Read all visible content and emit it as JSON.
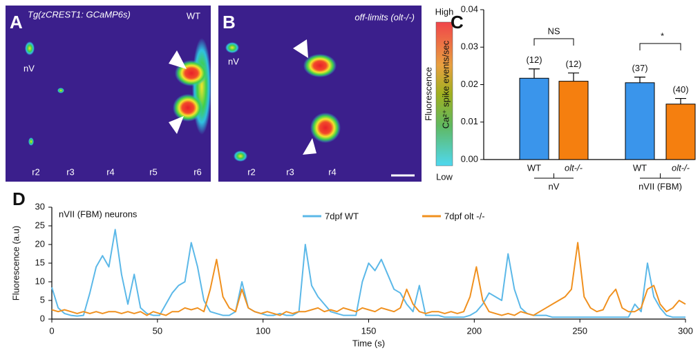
{
  "panels": {
    "A": {
      "letter": "A",
      "title": "Tg(zCREST1: GCaMP6s)",
      "genotype": "WT",
      "labels": [
        "nV",
        "r2",
        "r3",
        "r4",
        "r5",
        "r6"
      ]
    },
    "B": {
      "letter": "B",
      "title": "off-limits (olt-/-)",
      "labels": [
        "nV",
        "r2",
        "r3",
        "r4"
      ]
    }
  },
  "colorbar": {
    "high": "High",
    "low": "Low",
    "label": "Fluorescence"
  },
  "chart_data": [
    {
      "type": "bar",
      "panel": "C",
      "ylabel": "Ca²⁺ spike events/sec",
      "categories": [
        "WT",
        "olt-/-",
        "WT",
        "olt-/-"
      ],
      "groups": [
        "nV",
        "nVII (FBM)"
      ],
      "values": [
        0.0217,
        0.0209,
        0.0205,
        0.0148
      ],
      "errors": [
        0.0025,
        0.0022,
        0.0015,
        0.0015
      ],
      "n_labels": [
        "(12)",
        "(12)",
        "(37)",
        "(40)"
      ],
      "colors": [
        "#3a95eb",
        "#f57f0f",
        "#3a95eb",
        "#f57f0f"
      ],
      "significance": [
        "NS",
        "*"
      ],
      "ylim": [
        0,
        0.04
      ],
      "yticks": [
        {
          "value": 0,
          "label": "0.00"
        },
        {
          "value": 0.01,
          "label": "0.01"
        },
        {
          "value": 0.02,
          "label": "0.02"
        },
        {
          "value": 0.03,
          "label": "0.03"
        },
        {
          "value": 0.04,
          "label": "0.04"
        }
      ]
    },
    {
      "type": "line",
      "panel": "D",
      "annotation": "nVII (FBM) neurons",
      "xlabel": "Time (s)",
      "ylabel": "Fluorescence (a.u)",
      "x": [
        0,
        3,
        6,
        9,
        12,
        15,
        18,
        21,
        24,
        27,
        30,
        33,
        36,
        39,
        42,
        45,
        48,
        51,
        54,
        57,
        60,
        63,
        66,
        69,
        72,
        75,
        78,
        81,
        84,
        87,
        90,
        93,
        96,
        99,
        102,
        105,
        108,
        111,
        114,
        117,
        120,
        123,
        126,
        129,
        132,
        135,
        138,
        141,
        144,
        147,
        150,
        153,
        156,
        159,
        162,
        165,
        168,
        171,
        174,
        177,
        180,
        183,
        186,
        189,
        192,
        195,
        198,
        201,
        204,
        207,
        210,
        213,
        216,
        219,
        222,
        225,
        228,
        231,
        234,
        237,
        240,
        243,
        246,
        249,
        252,
        255,
        258,
        261,
        264,
        267,
        270,
        273,
        276,
        279,
        282,
        285,
        288,
        291,
        294,
        297,
        300
      ],
      "series": [
        {
          "name": "7dpf WT",
          "color": "#5bb8e8",
          "values": [
            8.5,
            3,
            1.5,
            1,
            0.8,
            1,
            7,
            14,
            17,
            14,
            24,
            12,
            4,
            12,
            3,
            1.5,
            1,
            1,
            4,
            7,
            9,
            10,
            20.5,
            14,
            5,
            2,
            1.5,
            1,
            1,
            2,
            10,
            3,
            2,
            1.5,
            1,
            1,
            1.5,
            1,
            1,
            2,
            20,
            9,
            6,
            4,
            2,
            1.5,
            1,
            1,
            1,
            10,
            15,
            13,
            16,
            12,
            8,
            7,
            4,
            2,
            9,
            1,
            1,
            1,
            0.5,
            0.5,
            0.5,
            0.5,
            1,
            2,
            4,
            7,
            6,
            5,
            17.5,
            8,
            3,
            1.5,
            1,
            1,
            1,
            0.5,
            0.5,
            0.5,
            0.5,
            0.5,
            0.5,
            0.5,
            0.5,
            0.5,
            0.5,
            0.5,
            0.5,
            0.5,
            4,
            2,
            15,
            6,
            3,
            1,
            0.5,
            0.5,
            0.5
          ]
        },
        {
          "name": "7dpf olt -/-",
          "color": "#f0901e",
          "values": [
            2.5,
            2,
            2.5,
            2,
            1.5,
            2,
            1.5,
            2,
            1.5,
            2,
            2,
            1.5,
            2,
            1.5,
            2,
            1,
            2,
            1.5,
            1,
            2,
            2,
            3,
            2.5,
            3,
            2,
            8,
            16,
            6,
            3,
            2,
            8,
            3,
            2,
            1.5,
            2,
            1.5,
            1,
            2,
            1.5,
            2,
            2,
            2.5,
            3,
            2,
            2.5,
            2,
            3,
            2.5,
            2,
            3,
            2.5,
            2,
            3,
            2.5,
            2,
            3,
            8,
            4,
            2,
            1.5,
            2,
            2,
            1.5,
            2,
            1.5,
            2,
            6,
            14,
            5,
            2,
            1.5,
            1,
            1.5,
            1,
            2,
            1.5,
            1,
            2,
            3,
            4,
            5,
            6,
            8,
            20.5,
            6,
            3,
            2,
            2.5,
            6,
            8,
            3,
            2,
            2,
            3,
            8,
            9,
            4,
            2,
            3,
            5,
            4
          ]
        }
      ],
      "xlim": [
        0,
        300
      ],
      "ylim": [
        0,
        30
      ],
      "xticks": [
        0,
        50,
        100,
        150,
        200,
        250,
        300
      ],
      "yticks": [
        0,
        5,
        10,
        15,
        20,
        25,
        30
      ]
    }
  ]
}
